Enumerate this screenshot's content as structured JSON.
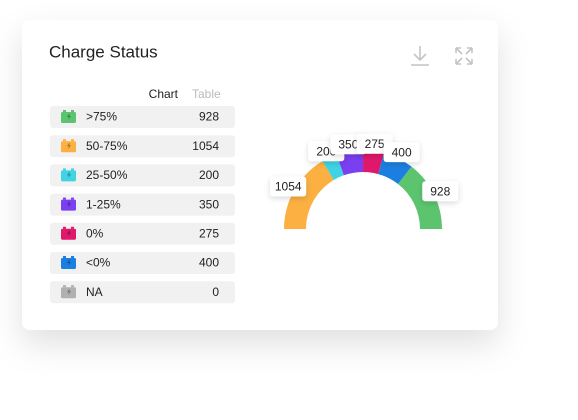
{
  "title": "Charge Status",
  "tabs": [
    "Chart",
    "Table"
  ],
  "chart_data": {
    "type": "pie",
    "categories": [
      ">75%",
      "50-75%",
      "25-50%",
      "1-25%",
      "0%",
      "<0%",
      "NA"
    ],
    "values": [
      928,
      1054,
      200,
      350,
      275,
      400,
      0
    ],
    "colors": [
      "#5cc46e",
      "#fbb041",
      "#3fd3e3",
      "#7b3ff2",
      "#e0186b",
      "#1b7fe1",
      "#b0b0b0"
    ]
  }
}
